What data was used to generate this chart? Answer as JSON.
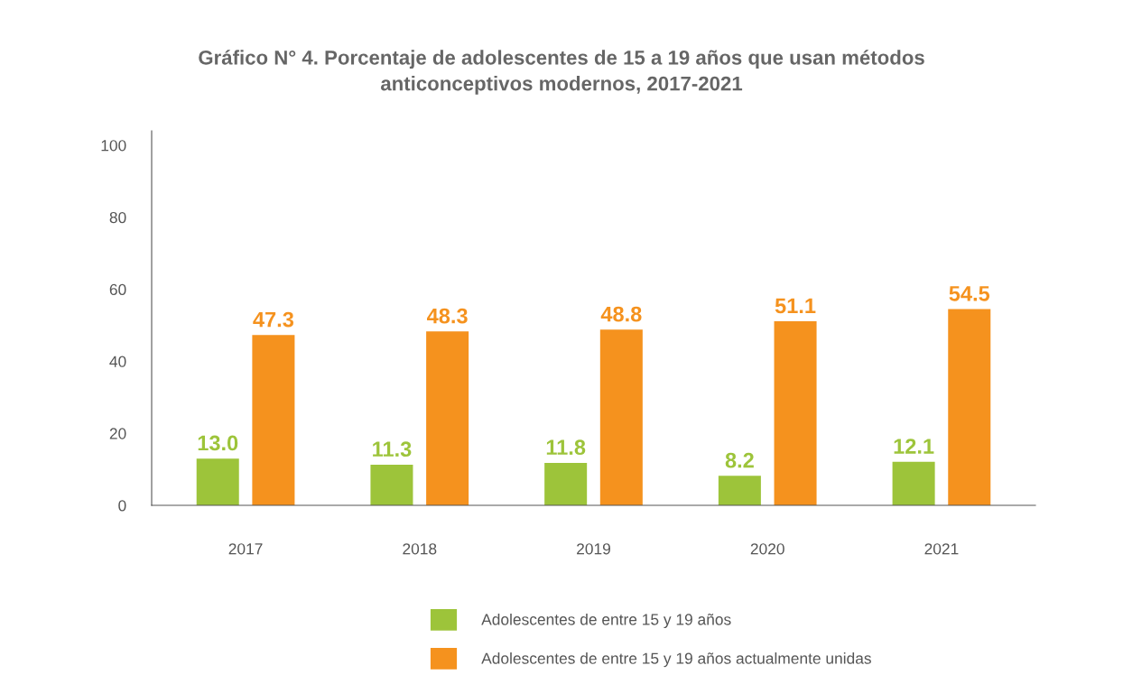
{
  "chart_data": {
    "type": "bar",
    "title": "Gráfico N° 4. Porcentaje de adolescentes de 15 a 19 años que usan métodos\nanticonceptivos modernos, 2017-2021",
    "categories": [
      "2017",
      "2018",
      "2019",
      "2020",
      "2021"
    ],
    "series": [
      {
        "name": "Adolescentes de entre 15 y 19 años",
        "color": "#9dc43a",
        "values": [
          13.0,
          11.3,
          11.8,
          8.2,
          12.1
        ],
        "value_labels": [
          "13.0",
          "11.3",
          "11.8",
          "8.2",
          "12.1"
        ]
      },
      {
        "name": "Adolescentes de entre 15 y 19 años actualmente unidas",
        "color": "#f5921e",
        "values": [
          47.3,
          48.3,
          48.8,
          51.1,
          54.5
        ],
        "value_labels": [
          "47.3",
          "48.3",
          "48.8",
          "51.1",
          "54.5"
        ]
      }
    ],
    "ylim": [
      0,
      104
    ],
    "yticks": [
      0,
      20,
      40,
      60,
      80,
      100
    ],
    "grid": false,
    "legend": "bottom"
  }
}
